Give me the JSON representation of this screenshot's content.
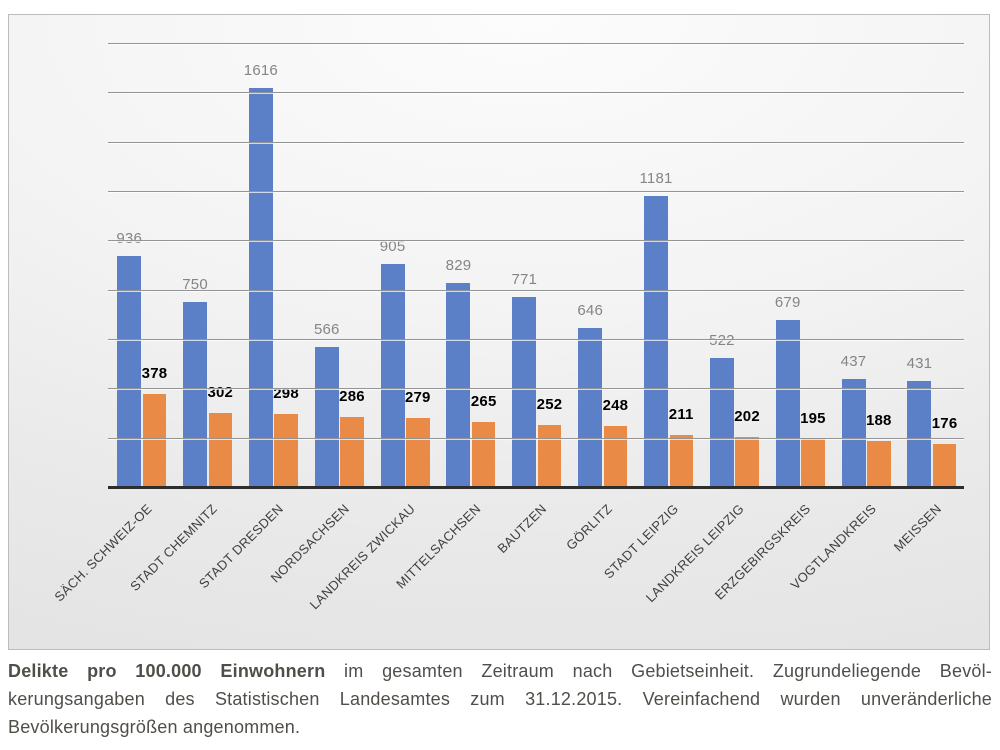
{
  "chart_data": {
    "type": "bar",
    "title": "",
    "xlabel": "",
    "ylabel": "",
    "categories": [
      "SÄCH. SCHWEIZ-OE",
      "STADT CHEMNITZ",
      "STADT DRESDEN",
      "NORDSACHSEN",
      "LANDKREIS ZWICKAU",
      "MITTELSACHSEN",
      "BAUTZEN",
      "GÖRLITZ",
      "STADT LEIPZIG",
      "LANDKREIS LEIPZIG",
      "ERZGEBIRGSKREIS",
      "VOGTLANDKREIS",
      "MEISSEN"
    ],
    "series": [
      {
        "values": [
          936,
          750,
          1616,
          566,
          905,
          829,
          771,
          646,
          1181,
          522,
          679,
          437,
          431
        ],
        "color": "#5b80c7",
        "label_color": "#858585",
        "label_bold": false
      },
      {
        "values": [
          378,
          302,
          298,
          286,
          279,
          265,
          252,
          248,
          211,
          202,
          195,
          188,
          176
        ],
        "color": "#e98a47",
        "label_color": "#000000",
        "label_bold": true
      }
    ],
    "ylim": [
      0,
      1800
    ],
    "grid": true,
    "gridline_step": 200,
    "y_axis_tick_labels_visible": false,
    "legend_position": "none",
    "data_labels": "above-bars",
    "grid_color": "#949494",
    "axis_color": "#2d2d2d",
    "x_label_rotation_deg": -45
  },
  "caption": {
    "line1_bold": "Delikte pro 100.000 Einwohnern",
    "line1_rest": " im gesamten Zeitraum nach Gebietseinheit. Zugrundeliegende Bevöl-",
    "line2": "kerungsangaben des Statistischen Landesamtes zum 31.12.2015. Vereinfachend wurden unveränderliche",
    "line3": "Bevölkerungsgrößen angenommen."
  }
}
